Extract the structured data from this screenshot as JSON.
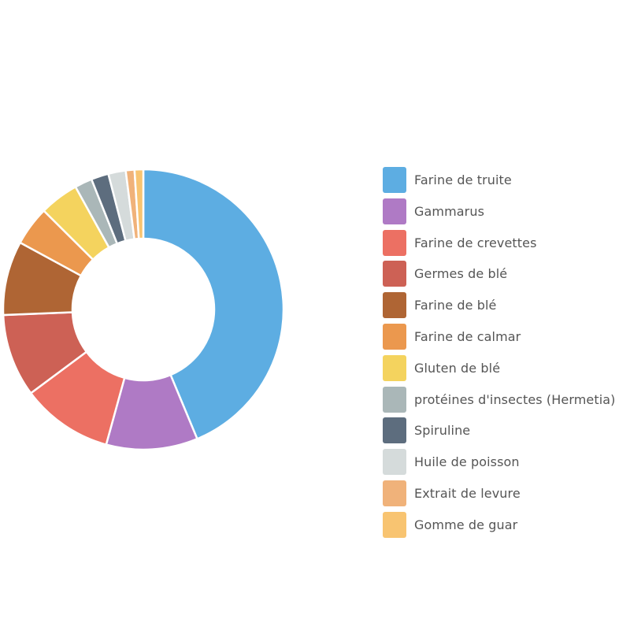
{
  "chart_data": {
    "type": "pie",
    "variant": "donut",
    "title": "",
    "legend_position": "right",
    "categories": [
      "Farine de truite",
      "Gammarus",
      "Farine de crevettes",
      "Germes de blé",
      "Farine de blé",
      "Farine de calmar",
      "Gluten de blé",
      "protéines d'insectes (Hermetia)",
      "Spiruline",
      "Huile de poisson",
      "Extrait de levure",
      "Gomme de guar"
    ],
    "values": [
      43.5,
      10.5,
      10.5,
      9.5,
      8.5,
      4.5,
      4.5,
      2,
      2,
      2,
      1,
      1
    ],
    "colors": [
      "#5DADE2",
      "#AF7AC5",
      "#EC7063",
      "#CD6155",
      "#AF6534",
      "#EB984E",
      "#F4D35E",
      "#AAB7B8",
      "#5D6D7E",
      "#D5DBDB",
      "#F0B27A",
      "#F8C471"
    ]
  }
}
